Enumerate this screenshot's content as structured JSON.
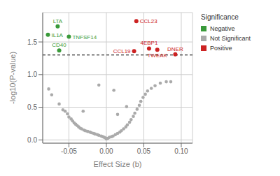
{
  "chart_data": {
    "type": "scatter",
    "xlabel": "Effect Size (b)",
    "ylabel": "-log10(P-value)",
    "xlim": [
      -0.085,
      0.115
    ],
    "ylim": [
      -0.05,
      1.95
    ],
    "xticks": [
      -0.05,
      {
        "value": 0,
        "label": "0.00"
      },
      0.05,
      {
        "value": 0.1,
        "label": "0.10"
      }
    ],
    "yticks": [
      {
        "value": 0,
        "label": "0.0"
      },
      0.5,
      {
        "value": 1,
        "label": "1.0"
      },
      1.5
    ],
    "grid": true,
    "legend": "right",
    "legend_title": "Significance",
    "hline": 1.3,
    "series": [
      {
        "name": "Negative",
        "color": "#3a9a3a",
        "x": [
          -0.065,
          -0.078,
          -0.05,
          -0.063
        ],
        "values": [
          1.74,
          1.61,
          1.58,
          1.37
        ],
        "labels": [
          "LTA",
          "IL1A",
          "TNFSF14",
          "CD40"
        ]
      },
      {
        "name": "Not Significant",
        "color": "#aaaaaa",
        "x": [
          -0.077,
          -0.073,
          -0.063,
          -0.058,
          -0.055,
          -0.052,
          -0.05,
          -0.047,
          -0.045,
          -0.043,
          -0.041,
          -0.039,
          -0.037,
          -0.035,
          -0.033,
          -0.03,
          -0.028,
          -0.025,
          -0.022,
          -0.02,
          -0.017,
          -0.015,
          -0.012,
          -0.01,
          -0.007,
          -0.005,
          -0.003,
          -0.001,
          0.0,
          0.002,
          0.004,
          0.007,
          0.009,
          0.012,
          0.015,
          0.018,
          0.02,
          0.023,
          0.026,
          0.028,
          0.031,
          0.033,
          0.036,
          0.038,
          0.041,
          0.044,
          0.046,
          0.049,
          0.052,
          0.055,
          0.06,
          0.065,
          0.072,
          0.08,
          0.086,
          -0.01,
          0.01,
          -0.031,
          0.027,
          0.015
        ],
        "values": [
          0.78,
          0.69,
          0.55,
          0.46,
          0.44,
          0.4,
          0.35,
          0.32,
          0.29,
          0.26,
          0.24,
          0.22,
          0.2,
          0.18,
          0.17,
          0.15,
          0.14,
          0.13,
          0.12,
          0.11,
          0.1,
          0.09,
          0.08,
          0.07,
          0.06,
          0.05,
          0.04,
          0.03,
          0.015,
          0.025,
          0.04,
          0.05,
          0.06,
          0.08,
          0.1,
          0.12,
          0.14,
          0.17,
          0.2,
          0.23,
          0.27,
          0.31,
          0.36,
          0.41,
          0.47,
          0.53,
          0.59,
          0.65,
          0.7,
          0.75,
          0.79,
          0.83,
          0.87,
          0.89,
          0.89,
          0.84,
          0.76,
          0.44,
          0.51,
          0.39
        ]
      },
      {
        "name": "Positive",
        "color": "#cc2222",
        "x": [
          0.04,
          0.037,
          0.057,
          0.068,
          0.092
        ],
        "values": [
          1.82,
          1.36,
          1.4,
          1.38,
          1.31
        ],
        "labels": [
          "CCL23",
          "CCL19",
          "4EBP1",
          "TWEAK",
          "DNER"
        ]
      }
    ]
  }
}
